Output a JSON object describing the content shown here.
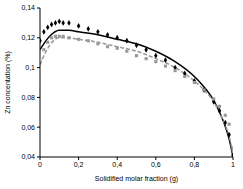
{
  "chart_data": {
    "type": "line",
    "x_label": "Solidified molar fraction (g)",
    "y_label": "Zn concentation (%)",
    "xlim": [
      0,
      1
    ],
    "ylim": [
      0.04,
      0.14
    ],
    "xticks": [
      0,
      {
        "value": 0.2,
        "label": "0,2"
      },
      {
        "value": 0.4,
        "label": "0,4"
      },
      {
        "value": 0.6,
        "label": "0,6"
      },
      {
        "value": 0.8,
        "label": "0,8"
      },
      1
    ],
    "yticks": [
      {
        "value": 0.04,
        "label": "0,04"
      },
      {
        "value": 0.06,
        "label": "0,06"
      },
      {
        "value": 0.08,
        "label": "0,08"
      },
      {
        "value": 0.1,
        "label": "0,1"
      },
      {
        "value": 0.12,
        "label": "0,12"
      },
      {
        "value": 0.14,
        "label": "0,14"
      }
    ],
    "grid": false,
    "series": [
      {
        "type": "scatter",
        "color": "#000000",
        "marker": "diamond",
        "x": [
          0,
          0.02,
          0.04,
          0.06,
          0.08,
          0.1,
          0.12,
          0.15,
          0.2,
          0.25,
          0.3,
          0.35,
          0.4,
          0.45,
          0.5,
          0.55,
          0.6,
          0.65,
          0.7,
          0.75,
          0.8,
          0.85,
          0.9,
          0.93,
          0.96,
          0.98,
          1
        ],
        "values": [
          0.118,
          0.124,
          0.127,
          0.129,
          0.13,
          0.131,
          0.13,
          0.13,
          0.128,
          0.126,
          0.124,
          0.122,
          0.12,
          0.118,
          0.115,
          0.112,
          0.108,
          0.105,
          0.1,
          0.096,
          0.091,
          0.085,
          0.077,
          0.071,
          0.063,
          0.055,
          0.041
        ]
      },
      {
        "type": "scatter",
        "color": "#999999",
        "marker": "square",
        "x": [
          0,
          0.02,
          0.04,
          0.06,
          0.08,
          0.1,
          0.12,
          0.15,
          0.2,
          0.25,
          0.3,
          0.35,
          0.4,
          0.45,
          0.5,
          0.55,
          0.6,
          0.65,
          0.7,
          0.75,
          0.8,
          0.85,
          0.9,
          0.93,
          0.96,
          0.98,
          1
        ],
        "values": [
          0.105,
          0.112,
          0.117,
          0.12,
          0.121,
          0.121,
          0.121,
          0.12,
          0.119,
          0.118,
          0.116,
          0.114,
          0.113,
          0.111,
          0.108,
          0.106,
          0.104,
          0.101,
          0.098,
          0.094,
          0.09,
          0.085,
          0.079,
          0.074,
          0.068,
          0.062,
          0.046
        ]
      },
      {
        "type": "line",
        "color": "#000000",
        "line_style": "solid",
        "x": [
          0,
          0.05,
          0.1,
          0.15,
          0.2,
          0.3,
          0.4,
          0.5,
          0.6,
          0.7,
          0.8,
          0.85,
          0.9,
          0.95,
          0.98,
          1
        ],
        "values": [
          0.112,
          0.121,
          0.125,
          0.125,
          0.124,
          0.122,
          0.119,
          0.116,
          0.111,
          0.104,
          0.094,
          0.087,
          0.078,
          0.064,
          0.052,
          0.04
        ]
      },
      {
        "type": "line",
        "color": "#999999",
        "line_style": "dashed",
        "x": [
          0,
          0.05,
          0.1,
          0.15,
          0.2,
          0.3,
          0.4,
          0.5,
          0.6,
          0.7,
          0.8,
          0.85,
          0.9,
          0.95,
          0.98,
          1
        ],
        "values": [
          0.102,
          0.115,
          0.12,
          0.12,
          0.119,
          0.117,
          0.114,
          0.111,
          0.106,
          0.1,
          0.091,
          0.085,
          0.077,
          0.064,
          0.054,
          0.042
        ]
      }
    ]
  }
}
